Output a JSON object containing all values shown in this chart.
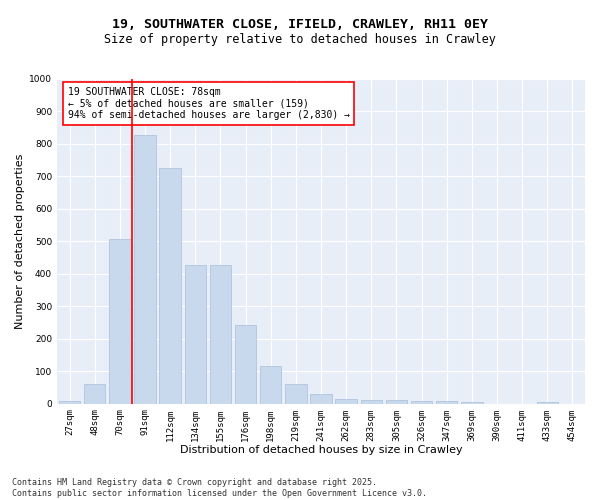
{
  "title_line1": "19, SOUTHWATER CLOSE, IFIELD, CRAWLEY, RH11 0EY",
  "title_line2": "Size of property relative to detached houses in Crawley",
  "xlabel": "Distribution of detached houses by size in Crawley",
  "ylabel": "Number of detached properties",
  "categories": [
    "27sqm",
    "48sqm",
    "70sqm",
    "91sqm",
    "112sqm",
    "134sqm",
    "155sqm",
    "176sqm",
    "198sqm",
    "219sqm",
    "241sqm",
    "262sqm",
    "283sqm",
    "305sqm",
    "326sqm",
    "347sqm",
    "369sqm",
    "390sqm",
    "411sqm",
    "433sqm",
    "454sqm"
  ],
  "values": [
    8,
    60,
    505,
    825,
    725,
    428,
    428,
    243,
    115,
    60,
    30,
    15,
    10,
    10,
    8,
    8,
    5,
    0,
    0,
    5,
    0
  ],
  "bar_color": "#c8d9ee",
  "bar_edge_color": "#a8bfda",
  "vline_color": "red",
  "vline_x": 2.5,
  "annotation_title": "19 SOUTHWATER CLOSE: 78sqm",
  "annotation_line2": "← 5% of detached houses are smaller (159)",
  "annotation_line3": "94% of semi-detached houses are larger (2,830) →",
  "annotation_box_color": "white",
  "annotation_box_edge_color": "red",
  "ylim": [
    0,
    1000
  ],
  "yticks": [
    0,
    100,
    200,
    300,
    400,
    500,
    600,
    700,
    800,
    900,
    1000
  ],
  "background_color": "#e8eef8",
  "grid_color": "white",
  "footer_line1": "Contains HM Land Registry data © Crown copyright and database right 2025.",
  "footer_line2": "Contains public sector information licensed under the Open Government Licence v3.0.",
  "title_fontsize": 9.5,
  "subtitle_fontsize": 8.5,
  "axis_label_fontsize": 8,
  "tick_fontsize": 6.5,
  "annotation_fontsize": 7,
  "footer_fontsize": 6
}
